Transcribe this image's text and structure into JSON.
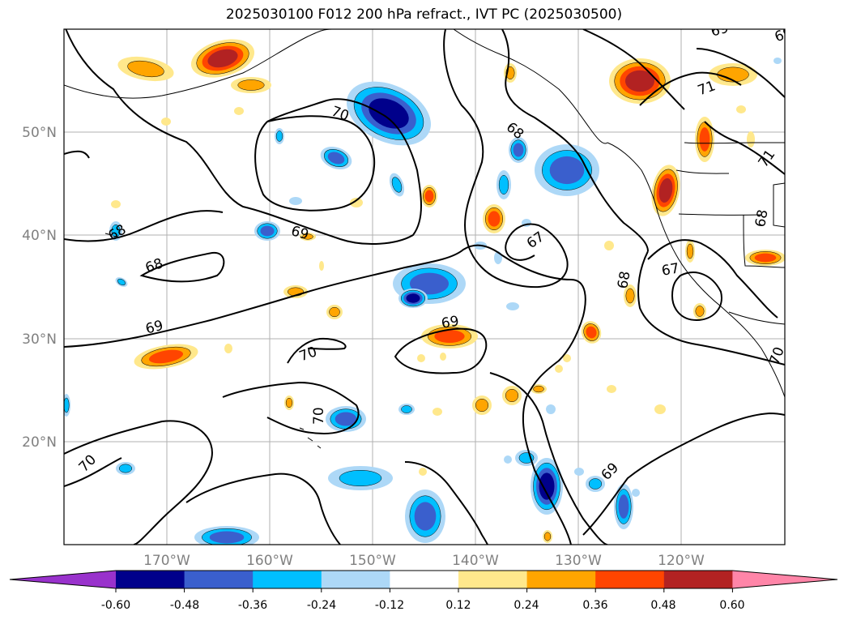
{
  "map": {
    "title": "2025030100 F012 200 hPa refract., IVT PC (2025030500)",
    "lat_labels": [
      "50°N",
      "40°N",
      "30°N",
      "20°N"
    ],
    "lon_labels": [
      "170°W",
      "160°W",
      "150°W",
      "140°W",
      "130°W",
      "120°W"
    ],
    "contour_labels": [
      "69",
      "70",
      "71",
      "68",
      "69",
      "68",
      "67",
      "69",
      "68",
      "67",
      "68",
      "68",
      "69",
      "69",
      "70",
      "70",
      "69",
      "70",
      "70",
      "71",
      "70",
      "70"
    ],
    "colorbar": {
      "ticks": [
        "-0.60",
        "-0.48",
        "-0.36",
        "-0.24",
        "-0.12",
        "0.12",
        "0.24",
        "0.36",
        "0.48",
        "0.60"
      ],
      "colors": [
        "#9932cc",
        "#00008b",
        "#3a5fcd",
        "#00bfff",
        "#add8f7",
        "#ffffff",
        "#ffe88c",
        "#ffa500",
        "#ff4500",
        "#b22222",
        "#ff85a8"
      ]
    },
    "colors": {
      "pos1": "#ffe88c",
      "pos2": "#ffa500",
      "pos3": "#ff4500",
      "pos4": "#b22222",
      "neg1": "#add8f7",
      "neg2": "#00bfff",
      "neg3": "#3a5fcd",
      "neg4": "#00008b"
    }
  }
}
